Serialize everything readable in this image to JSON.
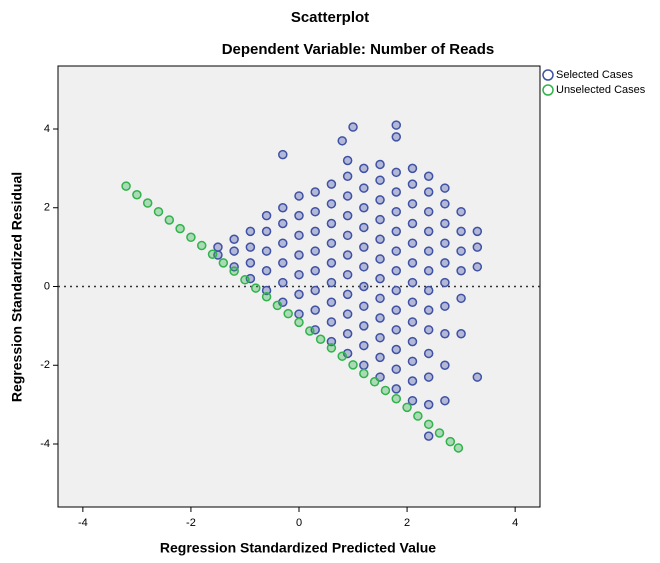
{
  "chart_data": {
    "type": "scatter",
    "title": "Scatterplot",
    "subtitle": "Dependent Variable: Number of Reads",
    "x_label": "Regression Standardized Predicted Value",
    "y_label": "Regression Standardized Residual",
    "xlim": [
      -4.46,
      4.46
    ],
    "ylim": [
      -5.6,
      5.6
    ],
    "xticks": [
      -4,
      -2,
      0,
      2,
      4
    ],
    "yticks": [
      -4,
      -2,
      0,
      2,
      4
    ],
    "reference_line": 0,
    "legend": "top-right",
    "series": [
      {
        "name": "Selected Cases",
        "color": "#3f51a5",
        "x": [
          -1.5,
          -1.5,
          -1.2,
          -1.2,
          -1.2,
          -0.9,
          -0.9,
          -0.9,
          -0.9,
          -0.6,
          -0.6,
          -0.6,
          -0.6,
          -0.6,
          -0.3,
          -0.3,
          -0.3,
          -0.3,
          -0.3,
          -0.3,
          0,
          0,
          0,
          0,
          0,
          0,
          0,
          0.3,
          0.3,
          0.3,
          0.3,
          0.3,
          0.3,
          0.3,
          0.3,
          0.6,
          0.6,
          0.6,
          0.6,
          0.6,
          0.6,
          0.6,
          0.6,
          0.6,
          0.9,
          0.9,
          0.9,
          0.9,
          0.9,
          0.9,
          0.9,
          0.9,
          0.9,
          0.9,
          0.9,
          1.2,
          1.2,
          1.2,
          1.2,
          1.2,
          1.2,
          1.2,
          1.2,
          1.2,
          1.2,
          1.2,
          1.5,
          1.5,
          1.5,
          1.5,
          1.5,
          1.5,
          1.5,
          1.5,
          1.5,
          1.5,
          1.5,
          1.5,
          1.8,
          1.8,
          1.8,
          1.8,
          1.8,
          1.8,
          1.8,
          1.8,
          1.8,
          1.8,
          1.8,
          1.8,
          1.8,
          2.1,
          2.1,
          2.1,
          2.1,
          2.1,
          2.1,
          2.1,
          2.1,
          2.1,
          2.1,
          2.1,
          2.1,
          2.1,
          2.4,
          2.4,
          2.4,
          2.4,
          2.4,
          2.4,
          2.4,
          2.4,
          2.4,
          2.4,
          2.4,
          2.4,
          2.7,
          2.7,
          2.7,
          2.7,
          2.7,
          2.7,
          2.7,
          2.7,
          2.7,
          2.7,
          3.0,
          3.0,
          3.0,
          3.0,
          3.0,
          3.0,
          3.3,
          3.3,
          3.3,
          -0.3,
          1.0,
          1.8,
          2.4,
          3.3,
          0.8
        ],
        "values": [
          0.8,
          1.0,
          0.5,
          0.9,
          1.2,
          0.2,
          0.6,
          1.0,
          1.4,
          -0.1,
          0.4,
          0.9,
          1.4,
          1.8,
          -0.4,
          0.1,
          0.6,
          1.1,
          1.6,
          2.0,
          -0.7,
          -0.2,
          0.3,
          0.8,
          1.3,
          1.8,
          2.3,
          -1.1,
          -0.6,
          -0.1,
          0.4,
          0.9,
          1.4,
          1.9,
          2.4,
          -1.4,
          -0.9,
          -0.4,
          0.1,
          0.6,
          1.1,
          1.6,
          2.1,
          2.6,
          -1.7,
          -1.2,
          -0.7,
          -0.2,
          0.3,
          0.8,
          1.3,
          1.8,
          2.3,
          2.8,
          3.2,
          -2.0,
          -1.5,
          -1.0,
          -0.5,
          0,
          0.5,
          1.0,
          1.5,
          2.0,
          2.5,
          3.0,
          -2.3,
          -1.8,
          -1.3,
          -0.8,
          -0.3,
          0.2,
          0.7,
          1.2,
          1.7,
          2.2,
          2.7,
          3.1,
          -2.6,
          -2.1,
          -1.6,
          -1.1,
          -0.6,
          -0.1,
          0.4,
          0.9,
          1.4,
          1.9,
          2.4,
          2.9,
          3.8,
          -2.9,
          -2.4,
          -1.9,
          -1.4,
          -0.9,
          -0.4,
          0.1,
          0.6,
          1.1,
          1.6,
          2.1,
          2.6,
          3.0,
          -3.0,
          -2.3,
          -1.7,
          -1.1,
          -0.6,
          -0.1,
          0.4,
          0.9,
          1.4,
          1.9,
          2.4,
          2.8,
          -2.9,
          -2.0,
          -1.2,
          -0.5,
          0.1,
          0.6,
          1.1,
          1.6,
          2.1,
          2.5,
          -1.2,
          -0.3,
          0.4,
          0.9,
          1.4,
          1.9,
          0.5,
          1.0,
          1.4,
          3.35,
          4.05,
          4.1,
          -3.8,
          -2.3,
          3.7
        ]
      },
      {
        "name": "Unselected Cases",
        "color": "#2fb34a",
        "x": [
          -3.2,
          -3.0,
          -2.8,
          -2.6,
          -2.4,
          -2.2,
          -2.0,
          -1.8,
          -1.6,
          -1.4,
          -1.2,
          -1.0,
          -0.8,
          -0.6,
          -0.4,
          -0.2,
          0,
          0.2,
          0.4,
          0.6,
          0.8,
          1.0,
          1.2,
          1.4,
          1.6,
          1.8,
          2.0,
          2.2,
          2.4,
          2.6,
          2.8,
          2.95
        ],
        "values": [
          2.55,
          2.33,
          2.12,
          1.9,
          1.69,
          1.47,
          1.25,
          1.04,
          0.82,
          0.6,
          0.39,
          0.17,
          -0.04,
          -0.26,
          -0.48,
          -0.69,
          -0.91,
          -1.13,
          -1.34,
          -1.56,
          -1.77,
          -1.99,
          -2.21,
          -2.42,
          -2.64,
          -2.85,
          -3.07,
          -3.29,
          -3.5,
          -3.72,
          -3.94,
          -4.1
        ]
      }
    ]
  }
}
